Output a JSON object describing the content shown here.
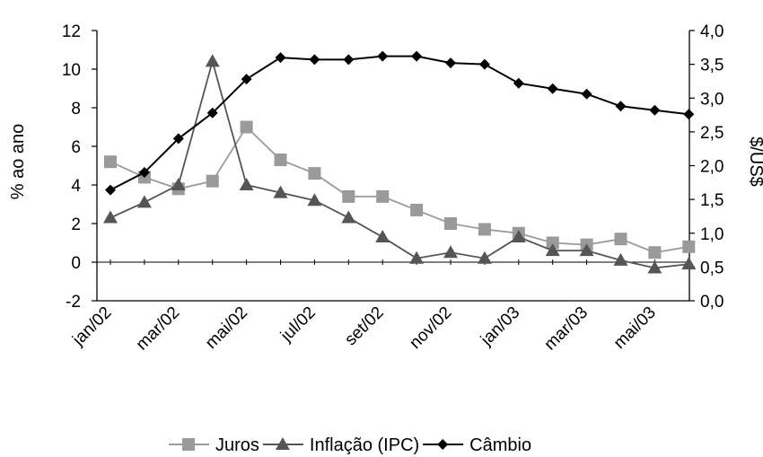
{
  "chart_data": {
    "type": "line",
    "title": "",
    "ylabel_left": "% ao ano",
    "ylabel_right": "$/US$",
    "ylim_left": [
      -2,
      12
    ],
    "yticks_left": [
      "-2",
      "0",
      "2",
      "4",
      "6",
      "8",
      "10",
      "12"
    ],
    "ylim_right": [
      0.0,
      4.0
    ],
    "yticks_right": [
      "0,0",
      "0,5",
      "1,0",
      "1,5",
      "2,0",
      "2,5",
      "3,0",
      "3,5",
      "4,0"
    ],
    "x_tick_labels": [
      "jan/02",
      "mar/02",
      "mai/02",
      "jul/02",
      "set/02",
      "nov/02",
      "jan/03",
      "mar/03",
      "mai/03"
    ],
    "x_tick_step": 2,
    "n_points": 18,
    "grid": false,
    "legend_position": "bottom",
    "series": [
      {
        "name": "Juros",
        "axis": "left",
        "marker": "square",
        "color": "#9a9a9a",
        "values": [
          5.2,
          4.4,
          3.8,
          4.2,
          7.0,
          5.3,
          4.6,
          3.4,
          3.4,
          2.7,
          2.0,
          1.7,
          1.5,
          1.0,
          0.9,
          1.2,
          0.5,
          0.8
        ]
      },
      {
        "name": "Inflação (IPC)",
        "axis": "left",
        "marker": "triangle",
        "color": "#555555",
        "values": [
          2.3,
          3.1,
          4.0,
          10.4,
          4.0,
          3.6,
          3.2,
          2.3,
          1.3,
          0.2,
          0.5,
          0.2,
          1.3,
          0.6,
          0.6,
          0.1,
          -0.3,
          -0.1
        ]
      },
      {
        "name": "Câmbio",
        "axis": "right",
        "marker": "diamond",
        "color": "#000000",
        "values": [
          1.64,
          1.9,
          2.4,
          2.78,
          3.28,
          3.6,
          3.57,
          3.57,
          3.62,
          3.62,
          3.52,
          3.5,
          3.22,
          3.14,
          3.06,
          2.88,
          2.82,
          2.76
        ]
      }
    ]
  }
}
